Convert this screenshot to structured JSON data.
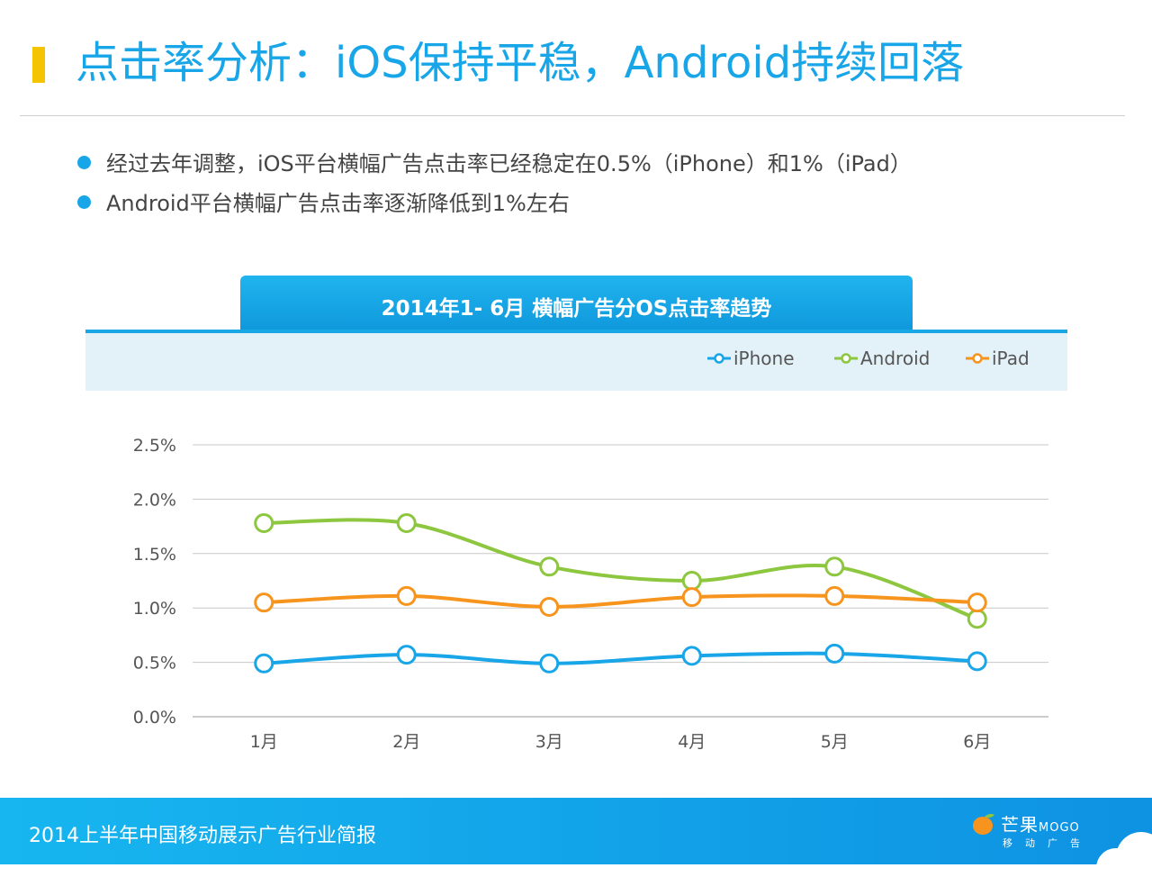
{
  "page": {
    "title": "点击率分析：iOS保持平稳，Android持续回落",
    "bullets": [
      "经过去年调整，iOS平台横幅广告点击率已经稳定在0.5%（iPhone）和1%（iPad）",
      "Android平台横幅广告点击率逐渐降低到1%左右"
    ]
  },
  "colors": {
    "accent": "#18a6e8",
    "marker": "#f5c400",
    "iphone": "#18a6e8",
    "android": "#8dc63f",
    "ipad": "#f7941d"
  },
  "chart_data": {
    "type": "line",
    "title": "2014年1- 6月 横幅广告分OS点击率趋势",
    "categories": [
      "1月",
      "2月",
      "3月",
      "4月",
      "5月",
      "6月"
    ],
    "yticks": [
      "0.0%",
      "0.5%",
      "1.0%",
      "1.5%",
      "2.0%",
      "2.5%"
    ],
    "ylim": [
      0,
      2.5
    ],
    "grid": true,
    "legend_position": "top-right",
    "series": [
      {
        "name": "iPhone",
        "color": "#18a6e8",
        "values": [
          0.49,
          0.57,
          0.49,
          0.56,
          0.58,
          0.51
        ]
      },
      {
        "name": "Android",
        "color": "#8dc63f",
        "values": [
          1.78,
          1.78,
          1.38,
          1.25,
          1.38,
          0.9
        ]
      },
      {
        "name": "iPad",
        "color": "#f7941d",
        "values": [
          1.05,
          1.11,
          1.01,
          1.1,
          1.11,
          1.05
        ]
      }
    ]
  },
  "footer": {
    "text": "2014上半年中国移动展示广告行业简报",
    "logo_main": "芒果",
    "logo_brand": "MOGO",
    "logo_sub": "移动广告"
  }
}
